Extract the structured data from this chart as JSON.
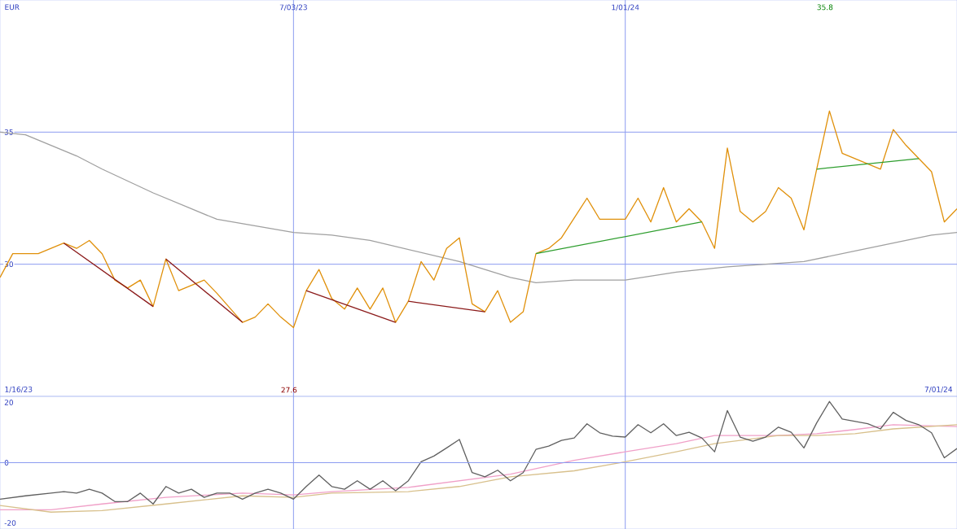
{
  "chart_data": [
    {
      "type": "line",
      "xlim": [
        "2023-01-23",
        "2024-07-01"
      ],
      "ylim": [
        25,
        40
      ],
      "yticks": [
        30,
        35
      ],
      "xticks": [
        {
          "value": "2023-07-03",
          "label": "7/03/23"
        },
        {
          "value": "2024-01-01",
          "label": "1/01/24"
        }
      ],
      "grid": true,
      "annotations": [
        "EUR",
        "1/16/23",
        "7/01/24",
        "27.6",
        "35.8"
      ],
      "series": [
        {
          "type": "line",
          "color": "#a0a0a0",
          "x": [
            "2023-01-23",
            "2023-02-06",
            "2023-02-20",
            "2023-03-06",
            "2023-03-20",
            "2023-04-17",
            "2023-05-22",
            "2023-07-03",
            "2023-07-24",
            "2023-08-14",
            "2023-10-02",
            "2023-10-30",
            "2023-11-13",
            "2023-12-04",
            "2024-01-01",
            "2024-01-29",
            "2024-02-26",
            "2024-04-08",
            "2024-05-13",
            "2024-06-17",
            "2024-07-01"
          ],
          "values": [
            35.0,
            34.9,
            34.5,
            34.1,
            33.6,
            32.7,
            31.7,
            31.2,
            31.1,
            30.9,
            30.1,
            29.5,
            29.3,
            29.4,
            29.4,
            29.7,
            29.9,
            30.1,
            30.6,
            31.1,
            31.2
          ]
        },
        {
          "type": "line",
          "color": "#e0900a",
          "x": [
            "2023-01-23",
            "2023-01-30",
            "2023-02-13",
            "2023-02-27",
            "2023-03-06",
            "2023-03-13",
            "2023-03-20",
            "2023-03-27",
            "2023-04-03",
            "2023-04-10",
            "2023-04-17",
            "2023-04-24",
            "2023-05-01",
            "2023-05-15",
            "2023-05-22",
            "2023-06-05",
            "2023-06-12",
            "2023-06-19",
            "2023-06-26",
            "2023-07-03",
            "2023-07-10",
            "2023-07-17",
            "2023-07-24",
            "2023-07-31",
            "2023-08-07",
            "2023-08-14",
            "2023-08-21",
            "2023-08-28",
            "2023-09-04",
            "2023-09-11",
            "2023-09-18",
            "2023-09-25",
            "2023-10-02",
            "2023-10-09",
            "2023-10-16",
            "2023-10-23",
            "2023-10-30",
            "2023-11-06",
            "2023-11-13",
            "2023-11-20",
            "2023-11-27",
            "2023-12-11",
            "2023-12-18",
            "2024-01-01",
            "2024-01-08",
            "2024-01-15",
            "2024-01-22",
            "2024-01-29",
            "2024-02-05",
            "2024-02-12",
            "2024-02-19",
            "2024-02-26",
            "2024-03-04",
            "2024-03-11",
            "2024-03-18",
            "2024-03-25",
            "2024-04-01",
            "2024-04-08",
            "2024-04-15",
            "2024-04-22",
            "2024-04-29",
            "2024-05-13",
            "2024-05-20",
            "2024-05-27",
            "2024-06-03",
            "2024-06-10",
            "2024-06-17",
            "2024-06-24",
            "2024-07-01"
          ],
          "values": [
            29.5,
            30.4,
            30.4,
            30.8,
            30.6,
            30.9,
            30.4,
            29.4,
            29.1,
            29.4,
            28.4,
            30.2,
            29.0,
            29.4,
            28.9,
            27.8,
            28.0,
            28.5,
            28.0,
            27.6,
            29.0,
            29.8,
            28.7,
            28.3,
            29.1,
            28.3,
            29.1,
            27.8,
            28.6,
            30.1,
            29.4,
            30.6,
            31.0,
            28.5,
            28.2,
            29.0,
            27.8,
            28.2,
            30.4,
            30.6,
            31.0,
            32.5,
            31.7,
            31.7,
            32.5,
            31.6,
            32.9,
            31.6,
            32.1,
            31.6,
            30.6,
            34.4,
            32.0,
            31.6,
            32.0,
            32.9,
            32.5,
            31.3,
            33.6,
            35.8,
            34.2,
            33.8,
            33.6,
            35.1,
            34.5,
            34.0,
            33.5,
            31.6,
            32.1
          ]
        },
        {
          "type": "line",
          "color": "#8b1a1a",
          "x": [
            "2023-02-27",
            "2023-04-17"
          ],
          "values": [
            30.8,
            28.4
          ]
        },
        {
          "type": "line",
          "color": "#8b1a1a",
          "x": [
            "2023-04-24",
            "2023-06-05"
          ],
          "values": [
            30.2,
            27.8
          ]
        },
        {
          "type": "line",
          "color": "#8b1a1a",
          "x": [
            "2023-07-10",
            "2023-08-28"
          ],
          "values": [
            29.0,
            27.8
          ]
        },
        {
          "type": "line",
          "color": "#8b1a1a",
          "x": [
            "2023-09-04",
            "2023-10-16"
          ],
          "values": [
            28.6,
            28.2
          ]
        },
        {
          "type": "line",
          "color": "#2e9e2e",
          "x": [
            "2023-11-13",
            "2024-02-12"
          ],
          "values": [
            30.4,
            31.6
          ]
        },
        {
          "type": "line",
          "color": "#2e9e2e",
          "x": [
            "2024-04-15",
            "2024-06-10"
          ],
          "values": [
            33.6,
            34.0
          ]
        }
      ]
    },
    {
      "type": "line",
      "xlim": [
        "2023-01-23",
        "2024-07-01"
      ],
      "ylim": [
        -22,
        22
      ],
      "yticks": [
        -20,
        0,
        20
      ],
      "xticks": [
        "2023-07-03",
        "2024-01-01"
      ],
      "tick_labels": "y",
      "grid": "x",
      "ref_lines": [
        {
          "axis": "y",
          "value": 0
        }
      ],
      "series": [
        {
          "type": "line",
          "color": "#f0a0c8",
          "x": [
            "2023-01-23",
            "2023-02-20",
            "2023-03-20",
            "2023-04-24",
            "2023-06-05",
            "2023-07-03",
            "2023-07-24",
            "2023-09-04",
            "2023-10-02",
            "2023-10-30",
            "2023-12-04",
            "2024-01-01",
            "2024-01-29",
            "2024-02-19",
            "2024-03-25",
            "2024-04-15",
            "2024-05-06",
            "2024-05-27",
            "2024-07-01"
          ],
          "values": [
            -15.6,
            -15.6,
            -13.7,
            -11.5,
            -10.1,
            -10.7,
            -9.6,
            -8.2,
            -6.0,
            -3.8,
            0.8,
            3.6,
            6.3,
            9.0,
            9.0,
            9.6,
            11.0,
            12.6,
            12.0
          ]
        },
        {
          "type": "line",
          "color": "#d8c08c",
          "x": [
            "2023-01-23",
            "2023-02-20",
            "2023-03-20",
            "2023-04-24",
            "2023-06-05",
            "2023-07-03",
            "2023-07-24",
            "2023-09-04",
            "2023-10-02",
            "2023-10-30",
            "2023-12-04",
            "2024-01-01",
            "2024-01-29",
            "2024-02-19",
            "2024-03-25",
            "2024-04-15",
            "2024-05-06",
            "2024-05-27",
            "2024-07-01"
          ],
          "values": [
            -14.2,
            -16.4,
            -15.9,
            -13.7,
            -11.0,
            -11.5,
            -10.1,
            -9.6,
            -7.9,
            -4.7,
            -2.7,
            0.3,
            3.6,
            6.3,
            9.0,
            9.0,
            9.6,
            11.2,
            12.6
          ]
        },
        {
          "type": "line",
          "color": "#606060",
          "x": [
            "2023-01-23",
            "2023-02-06",
            "2023-02-20",
            "2023-02-27",
            "2023-03-06",
            "2023-03-13",
            "2023-03-20",
            "2023-03-27",
            "2023-04-03",
            "2023-04-10",
            "2023-04-17",
            "2023-04-24",
            "2023-05-01",
            "2023-05-08",
            "2023-05-15",
            "2023-05-22",
            "2023-05-29",
            "2023-06-05",
            "2023-06-12",
            "2023-06-19",
            "2023-06-26",
            "2023-07-03",
            "2023-07-10",
            "2023-07-17",
            "2023-07-24",
            "2023-07-31",
            "2023-08-07",
            "2023-08-14",
            "2023-08-21",
            "2023-08-28",
            "2023-09-04",
            "2023-09-11",
            "2023-09-18",
            "2023-09-25",
            "2023-10-02",
            "2023-10-09",
            "2023-10-16",
            "2023-10-23",
            "2023-10-30",
            "2023-11-06",
            "2023-11-13",
            "2023-11-20",
            "2023-11-27",
            "2023-12-04",
            "2023-12-11",
            "2023-12-18",
            "2023-12-25",
            "2024-01-01",
            "2024-01-08",
            "2024-01-15",
            "2024-01-22",
            "2024-01-29",
            "2024-02-05",
            "2024-02-12",
            "2024-02-19",
            "2024-02-26",
            "2024-03-04",
            "2024-03-11",
            "2024-03-18",
            "2024-03-25",
            "2024-04-01",
            "2024-04-08",
            "2024-04-15",
            "2024-04-22",
            "2024-04-29",
            "2024-05-13",
            "2024-05-20",
            "2024-05-27",
            "2024-06-03",
            "2024-06-10",
            "2024-06-17",
            "2024-06-24",
            "2024-07-01"
          ],
          "values": [
            -12.1,
            -11.0,
            -10.1,
            -9.6,
            -10.1,
            -8.8,
            -10.1,
            -12.9,
            -12.9,
            -10.1,
            -13.7,
            -7.9,
            -10.1,
            -8.8,
            -11.5,
            -10.1,
            -10.1,
            -12.1,
            -10.1,
            -8.8,
            -10.1,
            -12.1,
            -7.9,
            -4.1,
            -7.9,
            -8.8,
            -6.0,
            -8.8,
            -6.0,
            -9.3,
            -6.0,
            0.3,
            2.2,
            4.9,
            7.7,
            -3.3,
            -4.7,
            -2.5,
            -6.0,
            -3.3,
            4.4,
            5.5,
            7.4,
            8.2,
            12.9,
            9.9,
            8.8,
            8.5,
            12.6,
            9.9,
            12.9,
            9.0,
            10.1,
            8.2,
            3.6,
            17.3,
            8.5,
            7.1,
            8.5,
            11.8,
            10.1,
            4.9,
            13.2,
            20.3,
            14.5,
            12.9,
            11.2,
            16.7,
            14.0,
            12.6,
            9.9,
            1.6,
            4.7
          ]
        }
      ]
    }
  ]
}
